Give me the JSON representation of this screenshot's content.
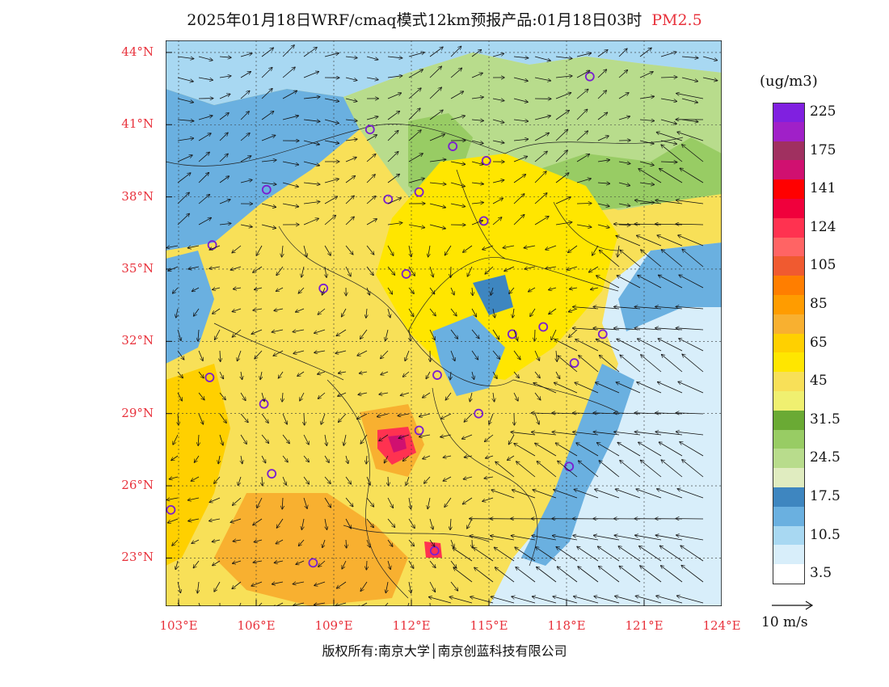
{
  "title": {
    "text": "2025年01月18日WRF/cmaq模式12km预报产品:01月18日03时",
    "pollutant": "PM2.5",
    "pollutant_color": "#e8323c"
  },
  "axes": {
    "lat_labels": [
      "44°N",
      "41°N",
      "38°N",
      "35°N",
      "32°N",
      "29°N",
      "26°N",
      "23°N"
    ],
    "lon_labels": [
      "103°E",
      "106°E",
      "109°E",
      "112°E",
      "115°E",
      "118°E",
      "121°E",
      "124°E"
    ],
    "lat_range": [
      21,
      44.5
    ],
    "lon_range": [
      102.5,
      124
    ]
  },
  "colorbar": {
    "unit": "(ug/m3)",
    "levels": [
      {
        "color": "#ffffff",
        "label": "3.5"
      },
      {
        "color": "#d8eefa",
        "label": ""
      },
      {
        "color": "#a8d8f2",
        "label": "10.5"
      },
      {
        "color": "#6ab0e0",
        "label": ""
      },
      {
        "color": "#3e86c0",
        "label": "17.5"
      },
      {
        "color": "#e0ecc0",
        "label": ""
      },
      {
        "color": "#b8dc8c",
        "label": "24.5"
      },
      {
        "color": "#98cc64",
        "label": ""
      },
      {
        "color": "#6aaa34",
        "label": "31.5"
      },
      {
        "color": "#f0f070",
        "label": ""
      },
      {
        "color": "#f8e058",
        "label": "45"
      },
      {
        "color": "#ffe600",
        "label": ""
      },
      {
        "color": "#ffd000",
        "label": "65"
      },
      {
        "color": "#f8b030",
        "label": ""
      },
      {
        "color": "#ff9c00",
        "label": "85"
      },
      {
        "color": "#ff7e00",
        "label": ""
      },
      {
        "color": "#f05a30",
        "label": "105"
      },
      {
        "color": "#ff6464",
        "label": ""
      },
      {
        "color": "#ff3250",
        "label": "124"
      },
      {
        "color": "#f0003c",
        "label": ""
      },
      {
        "color": "#ff0000",
        "label": "141"
      },
      {
        "color": "#d01070",
        "label": ""
      },
      {
        "color": "#a03060",
        "label": "175"
      },
      {
        "color": "#a020c8",
        "label": ""
      },
      {
        "color": "#8020e0",
        "label": "225"
      }
    ]
  },
  "wind_reference": {
    "label": "10 m/s"
  },
  "credit": "版权所有:南京大学│南京创蓝科技有限公司",
  "stations": [
    {
      "lon": 118.9,
      "lat": 43.0
    },
    {
      "lon": 110.4,
      "lat": 40.8
    },
    {
      "lon": 113.6,
      "lat": 40.1
    },
    {
      "lon": 114.9,
      "lat": 39.5
    },
    {
      "lon": 106.4,
      "lat": 38.3
    },
    {
      "lon": 111.1,
      "lat": 37.9
    },
    {
      "lon": 112.3,
      "lat": 38.2
    },
    {
      "lon": 114.8,
      "lat": 37.0
    },
    {
      "lon": 104.3,
      "lat": 36.0
    },
    {
      "lon": 111.8,
      "lat": 34.8
    },
    {
      "lon": 108.6,
      "lat": 34.2
    },
    {
      "lon": 117.1,
      "lat": 32.6
    },
    {
      "lon": 115.9,
      "lat": 32.3
    },
    {
      "lon": 119.4,
      "lat": 32.3
    },
    {
      "lon": 118.3,
      "lat": 31.1
    },
    {
      "lon": 113.0,
      "lat": 30.6
    },
    {
      "lon": 104.2,
      "lat": 30.5
    },
    {
      "lon": 106.3,
      "lat": 29.4
    },
    {
      "lon": 114.6,
      "lat": 29.0
    },
    {
      "lon": 112.3,
      "lat": 28.3
    },
    {
      "lon": 106.6,
      "lat": 26.5
    },
    {
      "lon": 118.1,
      "lat": 26.8
    },
    {
      "lon": 102.7,
      "lat": 25.0
    },
    {
      "lon": 112.9,
      "lat": 23.3
    },
    {
      "lon": 108.2,
      "lat": 22.8
    }
  ]
}
